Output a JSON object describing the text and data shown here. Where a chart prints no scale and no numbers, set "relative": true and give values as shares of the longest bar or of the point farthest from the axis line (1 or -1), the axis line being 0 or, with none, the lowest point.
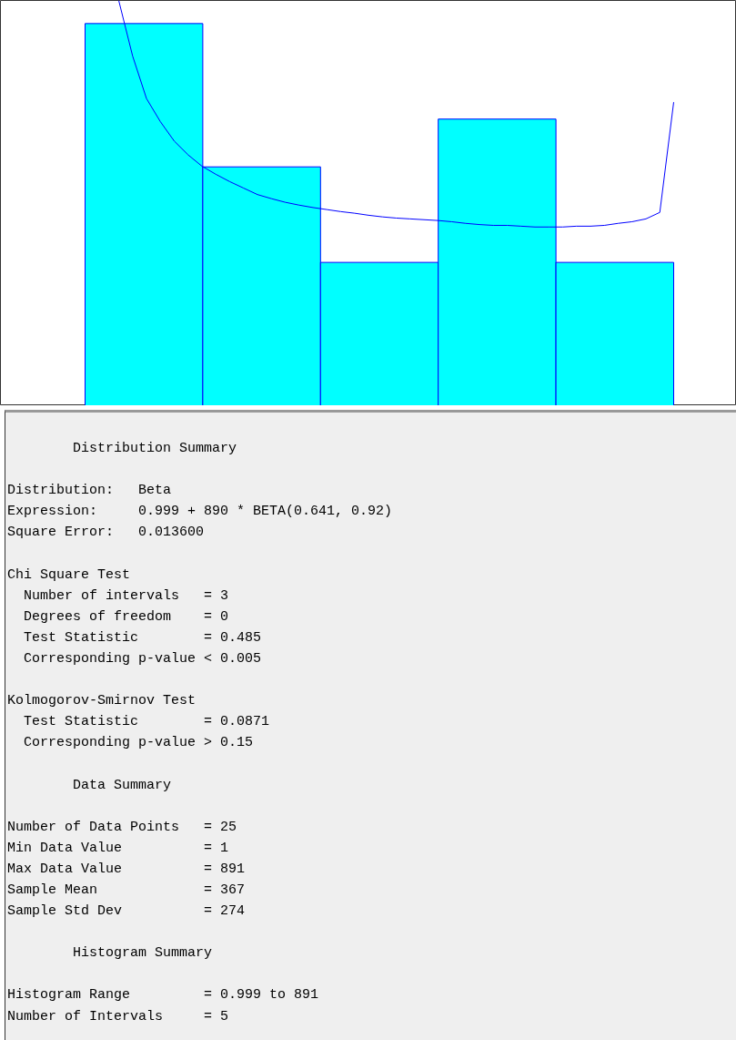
{
  "chart_data": [
    {
      "type": "bar",
      "relative": true,
      "categories": [
        null,
        null,
        null,
        null,
        null
      ],
      "values": [
        1,
        0.625,
        0.375,
        0.75,
        0.375
      ],
      "color": "#00ffff",
      "grid": false,
      "annotations": [
        "        Distribution Summary",
        "Distribution:   Beta\nExpression:     0.999 + 890 * BETA(0.641, 0.92)\nSquare Error:   0.013600",
        "Chi Square Test\n  Number of intervals   = 3\n  Degrees of freedom    = 0\n  Test Statistic        = 0.485\n  Corresponding p-value < 0.005",
        "Kolmogorov-Smirnov Test\n  Test Statistic        = 0.0871\n  Corresponding p-value > 0.15",
        "        Data Summary",
        "Number of Data Points   = 25\nMin Data Value          = 1\nMax Data Value          = 891\nSample Mean             = 367\nSample Std Dev          = 274",
        "        Histogram Summary",
        "Histogram Range         = 0.999 to 891\nNumber of Intervals     = 5"
      ]
    },
    {
      "type": "line",
      "relative": true,
      "grid": false,
      "categories": [
        null,
        null,
        null,
        null,
        null,
        null,
        null,
        null,
        null,
        null,
        null,
        null,
        null,
        null,
        null,
        null,
        null,
        null,
        null,
        null,
        null,
        null,
        null,
        null,
        null,
        null,
        null,
        null,
        null,
        null,
        null,
        null,
        null,
        null,
        null,
        null,
        null,
        null,
        null,
        null,
        null
      ],
      "series": [
        {
          "color": "#0000ff",
          "values": [
            1,
            0.863,
            0.758,
            0.701,
            0.653,
            0.619,
            0.591,
            0.571,
            0.553,
            0.537,
            0.521,
            0.511,
            0.502,
            0.495,
            0.489,
            0.484,
            0.479,
            0.475,
            0.47,
            0.466,
            0.463,
            0.461,
            0.459,
            0.457,
            0.454,
            0.45,
            0.447,
            0.445,
            0.445,
            0.443,
            0.441,
            0.441,
            0.441,
            0.443,
            0.443,
            0.445,
            0.45,
            0.454,
            0.461,
            0.477,
            0.749
          ]
        }
      ]
    }
  ]
}
